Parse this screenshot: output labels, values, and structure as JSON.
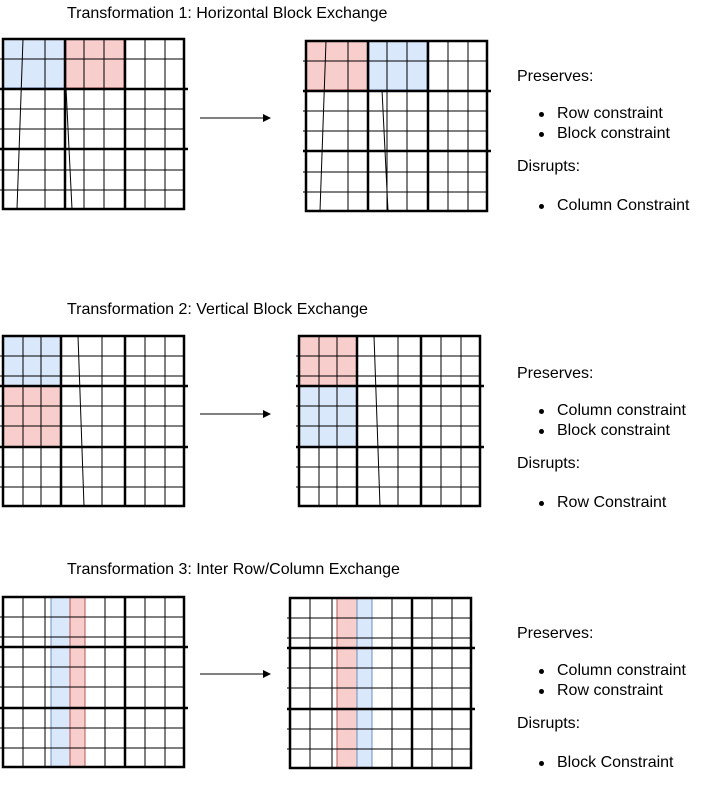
{
  "colors": {
    "blue_fill": "#dae8fc",
    "blue_stroke": "#6c8ebf",
    "red_fill": "#f8cecc",
    "red_stroke": "#b85450",
    "grid_thin": "#000000"
  },
  "transformations": [
    {
      "title": "Transformation 1: Horizontal Block Exchange",
      "preserves_label": "Preserves:",
      "preserves": [
        "Row constraint",
        "Block constraint"
      ],
      "disrupts_label": "Disrupts:",
      "disrupts": [
        "Column Constraint"
      ]
    },
    {
      "title": "Transformation 2: Vertical Block Exchange",
      "preserves_label": "Preserves:",
      "preserves": [
        "Column constraint",
        "Block constraint"
      ],
      "disrupts_label": "Disrupts:",
      "disrupts": [
        "Row Constraint"
      ]
    },
    {
      "title": "Transformation 3: Inter Row/Column  Exchange",
      "preserves_label": "Preserves:",
      "preserves": [
        "Column constraint",
        "Row constraint"
      ],
      "disrupts_label": "Disrupts:",
      "disrupts": [
        "Block Constraint"
      ]
    }
  ]
}
